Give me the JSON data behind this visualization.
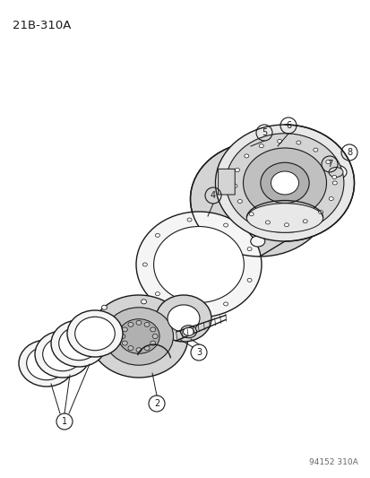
{
  "title": "21B-310A",
  "watermark": "94152 310A",
  "bg": "#ffffff",
  "lc": "#1a1a1a",
  "gray1": "#e8e8e8",
  "gray2": "#d4d4d4",
  "gray3": "#c0c0c0",
  "gray4": "#b0b0b0",
  "gray5": "#f5f5f5",
  "fig_w": 4.14,
  "fig_h": 5.33,
  "dpi": 100
}
